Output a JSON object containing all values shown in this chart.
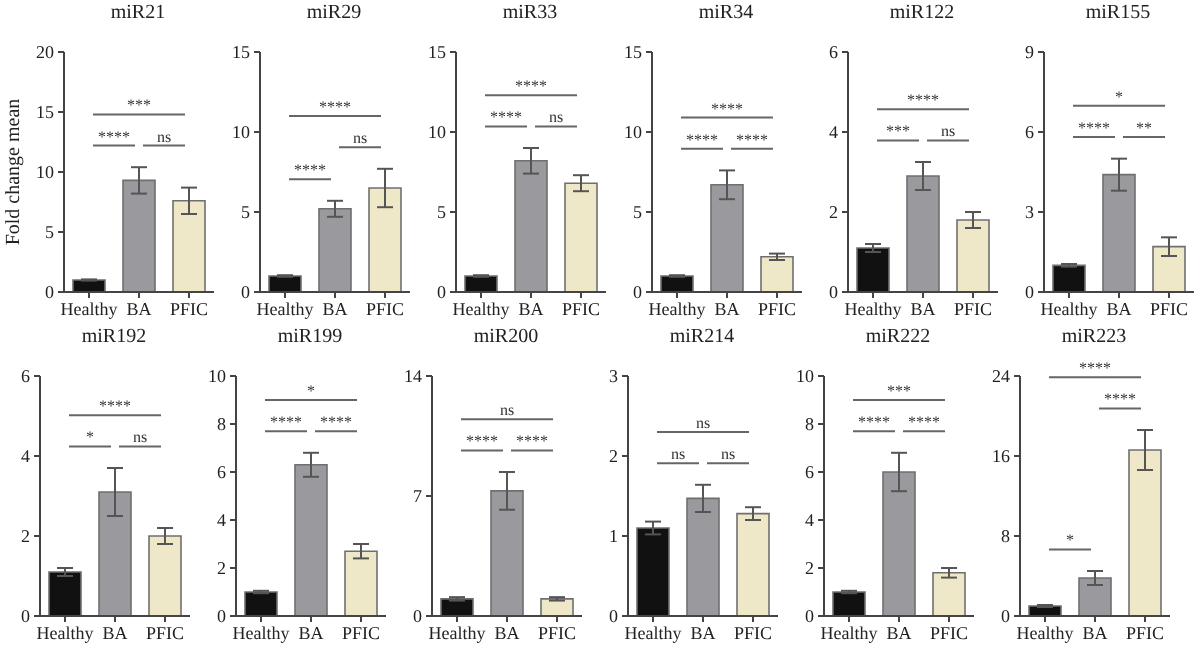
{
  "chart_data": [
    {
      "type": "bar",
      "title": "miR21",
      "ylabel": "Fold change mean",
      "categories": [
        "Healthy",
        "BA",
        "PFIC"
      ],
      "values": [
        1.0,
        9.3,
        7.6
      ],
      "errors": [
        0.05,
        1.1,
        1.1
      ],
      "colors": [
        "#111111",
        "#9a9a9e",
        "#efe8c8"
      ],
      "ylim": [
        0,
        20
      ],
      "yticks": [
        0,
        5,
        10,
        15,
        20
      ],
      "annotations": [
        "****",
        "ns",
        "***"
      ]
    },
    {
      "type": "bar",
      "title": "miR29",
      "categories": [
        "Healthy",
        "BA",
        "PFIC"
      ],
      "values": [
        1.0,
        5.2,
        6.5
      ],
      "errors": [
        0.05,
        0.5,
        1.2
      ],
      "colors": [
        "#111111",
        "#9a9a9e",
        "#efe8c8"
      ],
      "ylim": [
        0,
        15
      ],
      "yticks": [
        0,
        5,
        10,
        15
      ],
      "annotations": [
        "****",
        "ns",
        "****"
      ]
    },
    {
      "type": "bar",
      "title": "miR33",
      "categories": [
        "Healthy",
        "BA",
        "PFIC"
      ],
      "values": [
        1.0,
        8.2,
        6.8
      ],
      "errors": [
        0.05,
        0.8,
        0.5
      ],
      "colors": [
        "#111111",
        "#9a9a9e",
        "#efe8c8"
      ],
      "ylim": [
        0,
        15
      ],
      "yticks": [
        0,
        5,
        10,
        15
      ],
      "annotations": [
        "****",
        "ns",
        "****"
      ]
    },
    {
      "type": "bar",
      "title": "miR34",
      "categories": [
        "Healthy",
        "BA",
        "PFIC"
      ],
      "values": [
        1.0,
        6.7,
        2.2
      ],
      "errors": [
        0.05,
        0.9,
        0.2
      ],
      "colors": [
        "#111111",
        "#9a9a9e",
        "#efe8c8"
      ],
      "ylim": [
        0,
        15
      ],
      "yticks": [
        0,
        5,
        10,
        15
      ],
      "annotations": [
        "****",
        "****",
        "****"
      ]
    },
    {
      "type": "bar",
      "title": "miR122",
      "categories": [
        "Healthy",
        "BA",
        "PFIC"
      ],
      "values": [
        1.1,
        2.9,
        1.8
      ],
      "errors": [
        0.1,
        0.35,
        0.2
      ],
      "colors": [
        "#111111",
        "#9a9a9e",
        "#efe8c8"
      ],
      "ylim": [
        0,
        6
      ],
      "yticks": [
        0,
        2,
        4,
        6
      ],
      "annotations": [
        "***",
        "ns",
        "****"
      ]
    },
    {
      "type": "bar",
      "title": "miR155",
      "categories": [
        "Healthy",
        "BA",
        "PFIC"
      ],
      "values": [
        1.0,
        4.4,
        1.7
      ],
      "errors": [
        0.05,
        0.6,
        0.35
      ],
      "colors": [
        "#111111",
        "#9a9a9e",
        "#efe8c8"
      ],
      "ylim": [
        0,
        9
      ],
      "yticks": [
        0,
        3,
        6,
        9
      ],
      "annotations": [
        "****",
        "**",
        "*"
      ]
    },
    {
      "type": "bar",
      "title": "miR192",
      "categories": [
        "Healthy",
        "BA",
        "PFIC"
      ],
      "values": [
        1.1,
        3.1,
        2.0
      ],
      "errors": [
        0.1,
        0.6,
        0.2
      ],
      "colors": [
        "#111111",
        "#9a9a9e",
        "#efe8c8"
      ],
      "ylim": [
        0,
        6
      ],
      "yticks": [
        0,
        2,
        4,
        6
      ],
      "annotations": [
        "*",
        "ns",
        "****"
      ]
    },
    {
      "type": "bar",
      "title": "miR199",
      "categories": [
        "Healthy",
        "BA",
        "PFIC"
      ],
      "values": [
        1.0,
        6.3,
        2.7
      ],
      "errors": [
        0.05,
        0.5,
        0.3
      ],
      "colors": [
        "#111111",
        "#9a9a9e",
        "#efe8c8"
      ],
      "ylim": [
        0,
        10
      ],
      "yticks": [
        0,
        2,
        4,
        6,
        8,
        10
      ],
      "annotations": [
        "****",
        "****",
        "*"
      ]
    },
    {
      "type": "bar",
      "title": "miR200",
      "categories": [
        "Healthy",
        "BA",
        "PFIC"
      ],
      "values": [
        1.0,
        7.3,
        1.0
      ],
      "errors": [
        0.1,
        1.1,
        0.1
      ],
      "colors": [
        "#111111",
        "#9a9a9e",
        "#efe8c8"
      ],
      "ylim": [
        0,
        14
      ],
      "yticks": [
        0,
        7,
        14
      ],
      "annotations": [
        "****",
        "****",
        "ns"
      ]
    },
    {
      "type": "bar",
      "title": "miR214",
      "categories": [
        "Healthy",
        "BA",
        "PFIC"
      ],
      "values": [
        1.1,
        1.47,
        1.28
      ],
      "errors": [
        0.08,
        0.17,
        0.08
      ],
      "colors": [
        "#111111",
        "#9a9a9e",
        "#efe8c8"
      ],
      "ylim": [
        0,
        3
      ],
      "yticks": [
        0,
        1,
        2,
        3
      ],
      "annotations": [
        "ns",
        "ns",
        "ns"
      ]
    },
    {
      "type": "bar",
      "title": "miR222",
      "categories": [
        "Healthy",
        "BA",
        "PFIC"
      ],
      "values": [
        1.0,
        6.0,
        1.8
      ],
      "errors": [
        0.05,
        0.8,
        0.2
      ],
      "colors": [
        "#111111",
        "#9a9a9e",
        "#efe8c8"
      ],
      "ylim": [
        0,
        10
      ],
      "yticks": [
        0,
        2,
        4,
        6,
        8,
        10
      ],
      "annotations": [
        "****",
        "****",
        "***"
      ]
    },
    {
      "type": "bar",
      "title": "miR223",
      "categories": [
        "Healthy",
        "BA",
        "PFIC"
      ],
      "values": [
        1.0,
        3.8,
        16.6
      ],
      "errors": [
        0.1,
        0.7,
        2.0
      ],
      "colors": [
        "#111111",
        "#9a9a9e",
        "#efe8c8"
      ],
      "ylim": [
        0,
        24
      ],
      "yticks": [
        0,
        8,
        16,
        24
      ],
      "annotations": [
        "*",
        "****",
        "****"
      ]
    }
  ]
}
